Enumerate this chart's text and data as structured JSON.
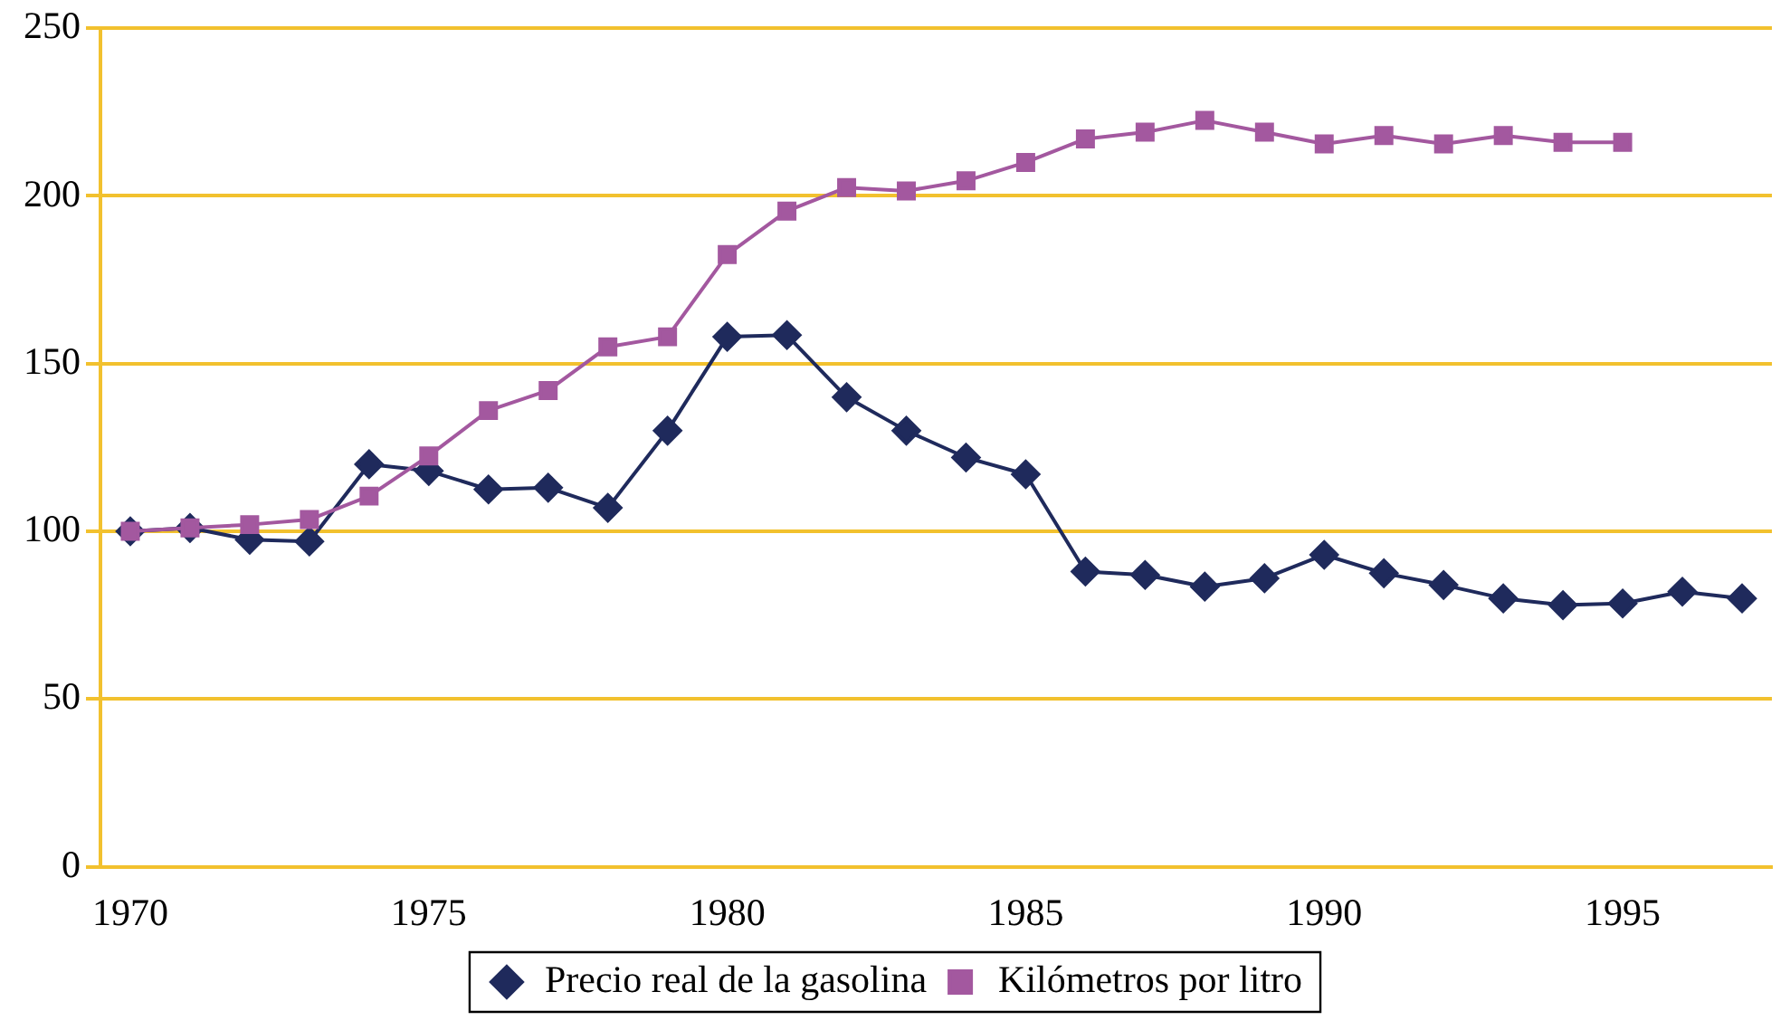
{
  "chart_data": {
    "type": "line",
    "categories": [
      "1970",
      null,
      null,
      null,
      null,
      "1975",
      null,
      null,
      null,
      null,
      "1980",
      null,
      null,
      null,
      null,
      "1985",
      null,
      null,
      null,
      null,
      "1990",
      null,
      null,
      null,
      null,
      "1995",
      null,
      null
    ],
    "series": [
      {
        "name": "Precio real de la gasolina",
        "color": "#1f2a5c",
        "marker": "diamond",
        "values": [
          100,
          101,
          97.5,
          97,
          120,
          118,
          112.5,
          113,
          107,
          130,
          158,
          158.5,
          140,
          130,
          122,
          117,
          88,
          87,
          83.5,
          86,
          93,
          87.5,
          84,
          80,
          78,
          78.5,
          82,
          80
        ]
      },
      {
        "name": "Kilómetros por litro",
        "color": "#a3589f",
        "marker": "square",
        "values": [
          100,
          101,
          102,
          103.5,
          110.5,
          122.5,
          136,
          142,
          155,
          158,
          182.5,
          195.5,
          202.5,
          201.5,
          204.5,
          210,
          217,
          219,
          222.5,
          219,
          215.5,
          218,
          215.5,
          218,
          216,
          216,
          null,
          null
        ]
      }
    ],
    "ylim": [
      0,
      250
    ],
    "yticks": [
      0,
      50,
      100,
      150,
      200,
      250
    ],
    "grid": "y",
    "legend": "bottom",
    "line_style": "solid"
  }
}
